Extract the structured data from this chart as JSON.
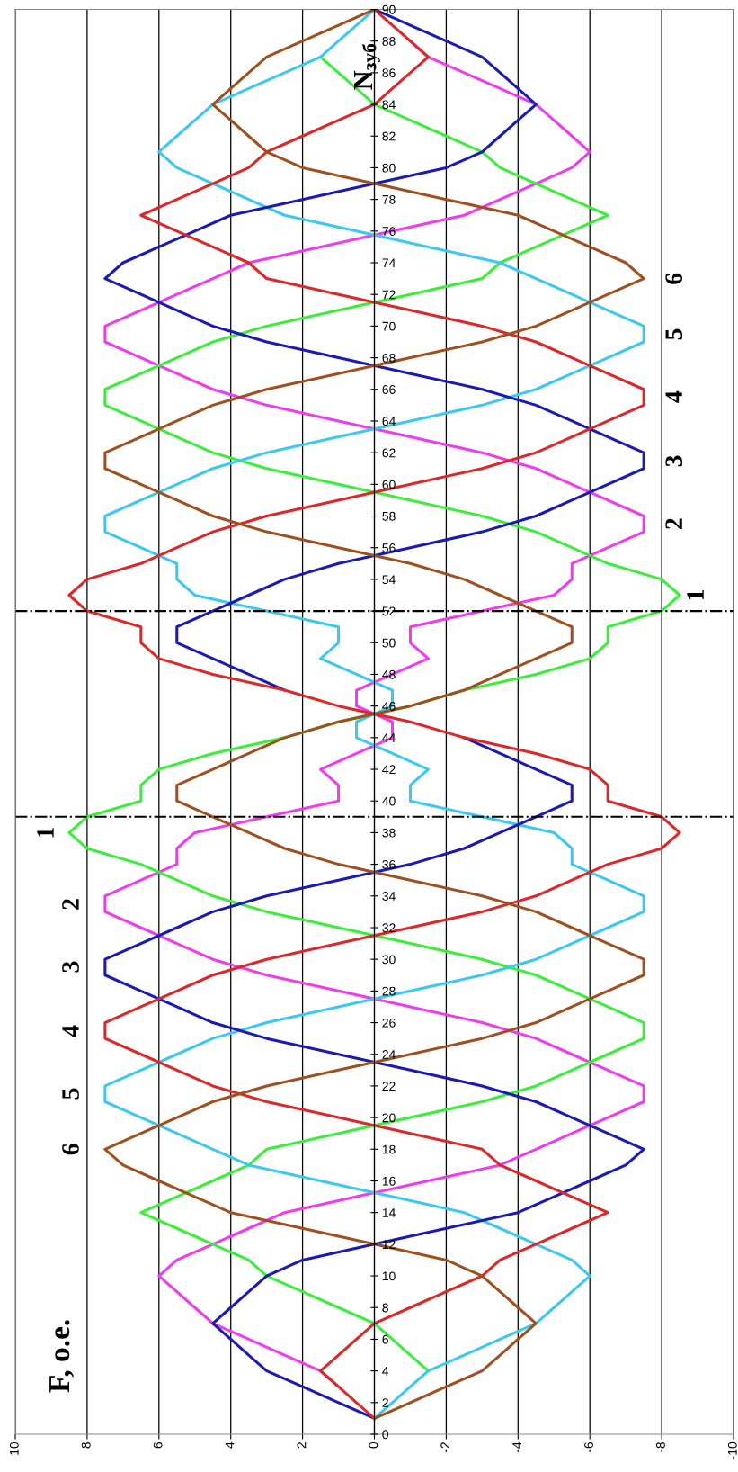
{
  "chart_data": {
    "type": "line",
    "orientation": "horizontal",
    "ylabel": "N$_{зуб}$",
    "x": [
      1,
      2,
      3,
      4,
      5,
      6,
      7,
      8,
      9,
      10,
      11,
      12,
      13,
      14,
      15,
      16,
      17,
      18,
      19,
      20,
      21,
      22,
      23,
      24,
      25,
      26,
      27,
      28,
      29,
      30,
      31,
      32,
      33,
      34,
      35,
      36,
      37,
      38,
      39,
      40,
      41,
      42,
      43,
      44,
      45,
      46,
      47,
      48,
      49,
      50,
      51,
      52,
      53,
      54,
      55,
      56,
      57,
      58,
      59,
      60,
      61,
      62,
      63,
      64,
      65,
      66,
      67,
      68,
      69,
      70,
      71,
      72,
      73,
      74,
      75,
      76,
      77,
      78,
      79,
      80,
      81,
      82,
      83,
      84,
      85,
      86,
      87,
      88,
      89,
      90
    ],
    "series": [
      {
        "color": "#ee3cee",
        "values": [
          null,
          null,
          1,
          1.5,
          2.5,
          3.5,
          4.5,
          5,
          5.5,
          6,
          5.5,
          4.5,
          3.5,
          2.5,
          0.5,
          -1.5,
          -3.5,
          -4.5,
          -5.5,
          -6.5,
          -7.5,
          -7.5,
          -6.5,
          -5.5,
          -4.5,
          -3,
          -1,
          1,
          3,
          4.5,
          5.5,
          6.5,
          7.5,
          7.5,
          6.5,
          5.5,
          5.5,
          5,
          3,
          1,
          1,
          1.5,
          0.5,
          -0.5,
          -0.5,
          0.5,
          0.5,
          -0.5,
          -1.5,
          -1,
          -1,
          -3,
          -5,
          -5.5,
          -5.5,
          -6.5,
          -7.5,
          -7.5,
          -6.5,
          -5.5,
          -4.5,
          -3,
          -1,
          1,
          3,
          4.5,
          5.5,
          6.5,
          7.5,
          7.5,
          6.5,
          5.5,
          4.5,
          3.5,
          1.5,
          -0.5,
          -2.5,
          -3.5,
          -4.5,
          -5.5,
          -6,
          -5.5,
          -5,
          -4.5,
          -3.5,
          -2.5,
          -1.5,
          -1,
          null,
          null
        ]
      },
      {
        "color": "#3cee3c",
        "values": [
          null,
          null,
          null,
          -1.5,
          -1,
          -0.5,
          0,
          1,
          2,
          3,
          3.5,
          4.5,
          5.5,
          6.5,
          5.5,
          4.5,
          3.5,
          3,
          1,
          -1,
          -3,
          -4.5,
          -5.5,
          -6.5,
          -7.5,
          -7.5,
          -6.5,
          -5.5,
          -4.5,
          -3,
          -1,
          1,
          3,
          4.5,
          5.5,
          6.5,
          8,
          8.5,
          8,
          6.5,
          6.5,
          6,
          4.5,
          2.5,
          1,
          -1,
          -2.5,
          -4.5,
          -6,
          -6.5,
          -6.5,
          -8,
          -8.5,
          -8,
          -6.5,
          -5.5,
          -4.5,
          -3,
          -1,
          1,
          3,
          4.5,
          5.5,
          6.5,
          7.5,
          7.5,
          6.5,
          5.5,
          4.5,
          3,
          1,
          -1,
          -3,
          -3.5,
          -4.5,
          -5.5,
          -6.5,
          -5.5,
          -4.5,
          -3.5,
          -3,
          -2,
          -1,
          0,
          0.5,
          1,
          1.5,
          null,
          null,
          null
        ]
      },
      {
        "color": "#3cc8f0",
        "values": [
          0,
          -0.5,
          -1,
          -1.5,
          -2.5,
          -3.5,
          -4.5,
          -5,
          -5.5,
          -6,
          -5.5,
          -4.5,
          -3.5,
          -2.5,
          -0.5,
          1.5,
          3.5,
          4.5,
          5.5,
          6.5,
          7.5,
          7.5,
          6.5,
          5.5,
          4.5,
          3,
          1,
          -1,
          -3,
          -4.5,
          -5.5,
          -6.5,
          -7.5,
          -7.5,
          -6.5,
          -5.5,
          -5.5,
          -5,
          -3,
          -1,
          -1,
          -1.5,
          -0.5,
          0.5,
          0.5,
          -0.5,
          -0.5,
          0.5,
          1.5,
          1,
          1,
          3,
          5,
          5.5,
          5.5,
          6.5,
          7.5,
          7.5,
          6.5,
          5.5,
          4.5,
          3,
          1,
          -1,
          -3,
          -4.5,
          -5.5,
          -6.5,
          -7.5,
          -7.5,
          -6.5,
          -5.5,
          -4.5,
          -3.5,
          -1.5,
          0.5,
          2.5,
          3.5,
          4.5,
          5.5,
          6,
          5.5,
          5,
          4.5,
          3.5,
          2.5,
          1.5,
          1,
          0.5,
          0
        ]
      },
      {
        "color": "#1a1ab4",
        "values": [
          0,
          1,
          2,
          3,
          3.5,
          4,
          4.5,
          4,
          3.5,
          3,
          2,
          0,
          -2,
          -4,
          -5,
          -6,
          -7,
          -7.5,
          -6.5,
          -5.5,
          -4.5,
          -3,
          -1,
          1,
          3,
          4.5,
          5.5,
          6.5,
          7.5,
          7.5,
          6.5,
          5.5,
          4.5,
          3,
          1,
          -1,
          -2.5,
          -3.5,
          -4.5,
          -5.5,
          -5.5,
          -4.5,
          -3.5,
          -2.5,
          null,
          null,
          2.5,
          3.5,
          4.5,
          5.5,
          5.5,
          4.5,
          3.5,
          2.5,
          1,
          -1,
          -3,
          -4.5,
          -5.5,
          -6.5,
          -7.5,
          -7.5,
          -6.5,
          -5.5,
          -4.5,
          -3,
          -1,
          1,
          3,
          4.5,
          5.5,
          6.5,
          7.5,
          7,
          6,
          5,
          4,
          2,
          0,
          -2,
          -3,
          -3.5,
          -4,
          -4.5,
          -4,
          -3.5,
          -3,
          -2,
          -1,
          0
        ]
      },
      {
        "color": "#dc2828",
        "values": [
          0,
          0.5,
          1,
          1.5,
          1,
          0.5,
          0,
          -1,
          -2,
          -3,
          -3.5,
          -4.5,
          -5.5,
          -6.5,
          -5.5,
          -4.5,
          -3.5,
          -3,
          -1,
          1,
          3,
          4.5,
          5.5,
          6.5,
          7.5,
          7.5,
          6.5,
          5.5,
          4.5,
          3,
          1,
          -1,
          -3,
          -4.5,
          -5.5,
          -6.5,
          -8,
          -8.5,
          -8,
          -6.5,
          -6.5,
          -6,
          -4.5,
          -2.5,
          -1,
          1,
          2.5,
          4.5,
          6,
          6.5,
          6.5,
          8,
          8.5,
          8,
          6.5,
          5.5,
          4.5,
          3,
          1,
          -1,
          -3,
          -4.5,
          -5.5,
          -6.5,
          -7.5,
          -7.5,
          -6.5,
          -5.5,
          -4.5,
          -3,
          -1,
          1,
          3,
          3.5,
          4.5,
          5.5,
          6.5,
          5.5,
          4.5,
          3.5,
          3,
          2,
          1,
          0,
          -0.5,
          -1,
          -1.5,
          -1,
          -0.5,
          0
        ]
      },
      {
        "color": "#a0501e",
        "values": [
          0,
          -1,
          -2,
          -3,
          -3.5,
          -4,
          -4.5,
          -4,
          -3.5,
          -3,
          -2,
          0,
          2,
          4,
          5,
          6,
          7,
          7.5,
          6.5,
          5.5,
          4.5,
          3,
          1,
          -1,
          -3,
          -4.5,
          -5.5,
          -6.5,
          -7.5,
          -7.5,
          -6.5,
          -5.5,
          -4.5,
          -3,
          -1,
          1,
          2.5,
          3.5,
          4.5,
          5.5,
          5.5,
          4.5,
          3.5,
          2.5,
          1,
          -1,
          -2.5,
          -3.5,
          -4.5,
          -5.5,
          -5.5,
          -4.5,
          -3.5,
          -2.5,
          -1,
          1,
          3,
          4.5,
          5.5,
          6.5,
          7.5,
          7.5,
          6.5,
          5.5,
          4.5,
          3,
          1,
          -1,
          -3,
          -4.5,
          -5.5,
          -6.5,
          -7.5,
          -7,
          -6,
          -5,
          -4,
          -2,
          0,
          2,
          3,
          3.5,
          4,
          4.5,
          4,
          3.5,
          3,
          2,
          1,
          0
        ]
      }
    ],
    "ylim": [
      0,
      90
    ],
    "yticks": [
      0,
      2,
      4,
      6,
      8,
      10,
      12,
      14,
      16,
      18,
      20,
      22,
      24,
      26,
      28,
      30,
      32,
      34,
      36,
      38,
      40,
      42,
      44,
      46,
      48,
      50,
      52,
      54,
      56,
      58,
      60,
      62,
      64,
      66,
      68,
      70,
      72,
      74,
      76,
      78,
      80,
      82,
      84,
      86,
      88,
      90
    ],
    "xlim": [
      10,
      -10
    ],
    "xticks": [
      10,
      8,
      6,
      4,
      2,
      0,
      -2,
      -4,
      -6,
      -8,
      -10
    ],
    "grid": "x",
    "ref_lines": [
      {
        "axis": "y",
        "value": 39,
        "line_style": "dashdot",
        "color": "#000000"
      },
      {
        "axis": "y",
        "value": 52,
        "line_style": "dashdot",
        "color": "#000000"
      }
    ],
    "annotations": [
      "6",
      "5",
      "4",
      "3",
      "2",
      "1",
      "1",
      "2",
      "3",
      "4",
      "5",
      "6",
      "F, о.е."
    ]
  }
}
